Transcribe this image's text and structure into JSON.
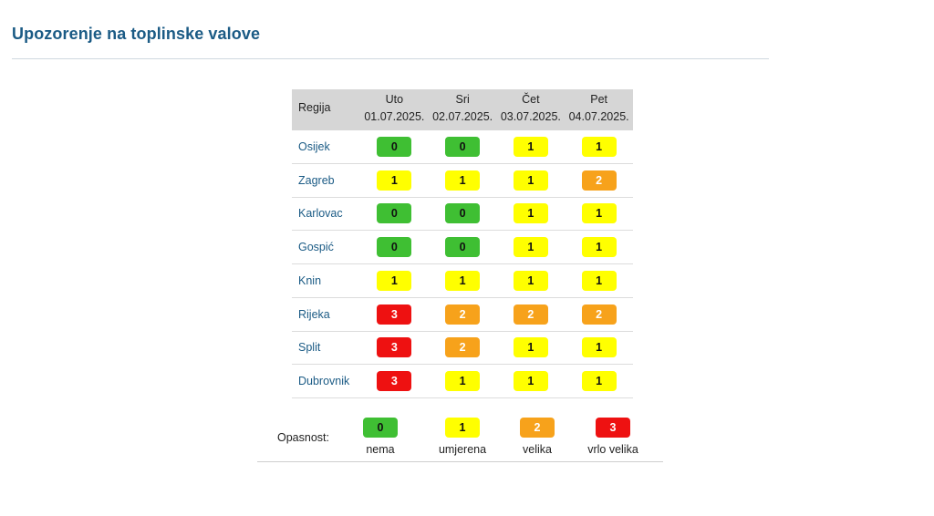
{
  "title": "Upozorenje na toplinske valove",
  "table": {
    "region_header": "Regija",
    "days": [
      {
        "name": "Uto",
        "date": "01.07.2025."
      },
      {
        "name": "Sri",
        "date": "02.07.2025."
      },
      {
        "name": "Čet",
        "date": "03.07.2025."
      },
      {
        "name": "Pet",
        "date": "04.07.2025."
      }
    ],
    "rows": [
      {
        "region": "Osijek",
        "levels": [
          "0",
          "0",
          "1",
          "1"
        ]
      },
      {
        "region": "Zagreb",
        "levels": [
          "1",
          "1",
          "1",
          "2"
        ]
      },
      {
        "region": "Karlovac",
        "levels": [
          "0",
          "0",
          "1",
          "1"
        ]
      },
      {
        "region": "Gospić",
        "levels": [
          "0",
          "0",
          "1",
          "1"
        ]
      },
      {
        "region": "Knin",
        "levels": [
          "1",
          "1",
          "1",
          "1"
        ]
      },
      {
        "region": "Rijeka",
        "levels": [
          "3",
          "2",
          "2",
          "2"
        ]
      },
      {
        "region": "Split",
        "levels": [
          "3",
          "2",
          "1",
          "1"
        ]
      },
      {
        "region": "Dubrovnik",
        "levels": [
          "3",
          "1",
          "1",
          "1"
        ]
      }
    ]
  },
  "legend": {
    "label": "Opasnost:",
    "items": [
      {
        "value": "0",
        "text": "nema"
      },
      {
        "value": "1",
        "text": "umjerena"
      },
      {
        "value": "2",
        "text": "velika"
      },
      {
        "value": "3",
        "text": "vrlo velika"
      }
    ]
  },
  "colors": {
    "level0": "#3fbf33",
    "level1": "#ffff00",
    "level2": "#f7a21b",
    "level3": "#ee1111",
    "title": "#1b5b85",
    "region_link": "#1b5b85",
    "header_bg": "#d6d6d6"
  }
}
